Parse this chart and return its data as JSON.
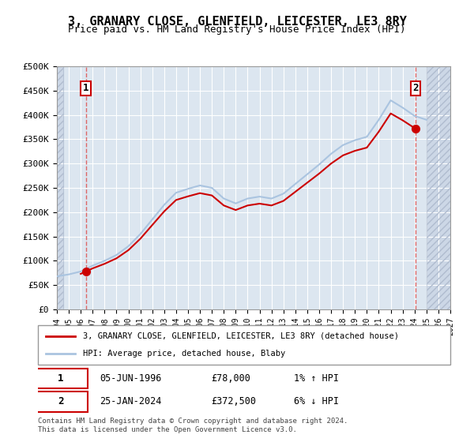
{
  "title": "3, GRANARY CLOSE, GLENFIELD, LEICESTER, LE3 8RY",
  "subtitle": "Price paid vs. HM Land Registry's House Price Index (HPI)",
  "background_color": "#dce6f0",
  "plot_bg_color": "#dce6f0",
  "hatch_color": "#c0c8d8",
  "grid_color": "#ffffff",
  "ylim": [
    0,
    500000
  ],
  "yticks": [
    0,
    50000,
    100000,
    150000,
    200000,
    250000,
    300000,
    350000,
    400000,
    450000,
    500000
  ],
  "ytick_labels": [
    "£0",
    "£50K",
    "£100K",
    "£150K",
    "£200K",
    "£250K",
    "£300K",
    "£350K",
    "£400K",
    "£450K",
    "£500K"
  ],
  "xlim_start": 1994,
  "xlim_end": 2027,
  "xticks": [
    1994,
    1995,
    1996,
    1997,
    1998,
    1999,
    2000,
    2001,
    2002,
    2003,
    2004,
    2005,
    2006,
    2007,
    2008,
    2009,
    2010,
    2011,
    2012,
    2013,
    2014,
    2015,
    2016,
    2017,
    2018,
    2019,
    2020,
    2021,
    2022,
    2023,
    2024,
    2025,
    2026,
    2027
  ],
  "sale1_x": 1996.43,
  "sale1_y": 78000,
  "sale1_label": "1",
  "sale1_date": "05-JUN-1996",
  "sale1_price": "£78,000",
  "sale1_hpi": "1% ↑ HPI",
  "sale2_x": 2024.07,
  "sale2_y": 372500,
  "sale2_label": "2",
  "sale2_date": "25-JAN-2024",
  "sale2_price": "£372,500",
  "sale2_hpi": "6% ↓ HPI",
  "hpi_line_color": "#aac4e0",
  "price_line_color": "#cc0000",
  "sale_marker_color": "#cc0000",
  "dashed_line_color": "#dd6666",
  "legend_house_label": "3, GRANARY CLOSE, GLENFIELD, LEICESTER, LE3 8RY (detached house)",
  "legend_hpi_label": "HPI: Average price, detached house, Blaby",
  "footer": "Contains HM Land Registry data © Crown copyright and database right 2024.\nThis data is licensed under the Open Government Licence v3.0.",
  "hpi_data_x": [
    1994,
    1995,
    1996,
    1997,
    1998,
    1999,
    2000,
    2001,
    2002,
    2003,
    2004,
    2005,
    2006,
    2007,
    2008,
    2009,
    2010,
    2011,
    2012,
    2013,
    2014,
    2015,
    2016,
    2017,
    2018,
    2019,
    2020,
    2021,
    2022,
    2023,
    2024,
    2025
  ],
  "hpi_data_y": [
    68000,
    72000,
    78000,
    90000,
    100000,
    112000,
    130000,
    155000,
    185000,
    215000,
    240000,
    248000,
    255000,
    250000,
    228000,
    218000,
    228000,
    232000,
    228000,
    238000,
    258000,
    278000,
    298000,
    320000,
    338000,
    348000,
    355000,
    390000,
    430000,
    415000,
    398000,
    390000
  ]
}
